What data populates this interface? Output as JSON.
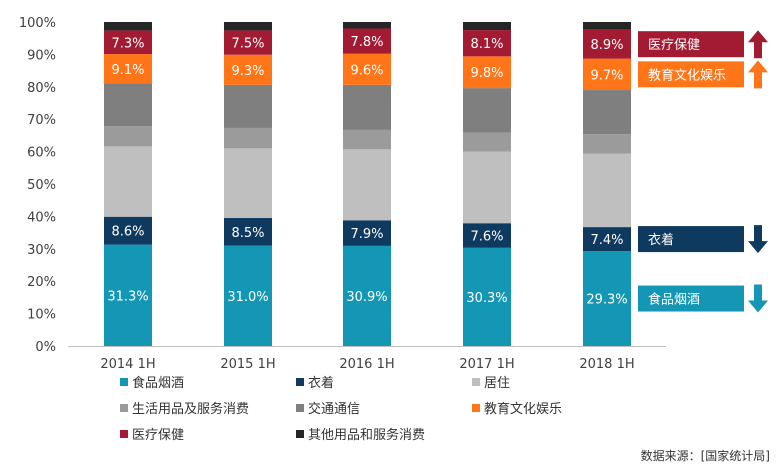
{
  "chart_data": {
    "type": "bar",
    "stacked": true,
    "categories": [
      "2014 1H",
      "2015 1H",
      "2016 1H",
      "2017 1H",
      "2018 1H"
    ],
    "ylim": [
      0,
      100
    ],
    "y_ticks": [
      "0%",
      "10%",
      "20%",
      "30%",
      "40%",
      "50%",
      "60%",
      "70%",
      "80%",
      "90%",
      "100%"
    ],
    "series": [
      {
        "name": "食品烟酒",
        "color": "#1497B5",
        "values": [
          31.3,
          31.0,
          30.9,
          30.3,
          29.3
        ],
        "labels": [
          "31.3%",
          "31.0%",
          "30.9%",
          "30.3%",
          "29.3%"
        ],
        "label_color": "#ffffff"
      },
      {
        "name": "衣着",
        "color": "#0F3A5F",
        "values": [
          8.6,
          8.5,
          7.9,
          7.6,
          7.4
        ],
        "labels": [
          "8.6%",
          "8.5%",
          "7.9%",
          "7.6%",
          "7.4%"
        ],
        "label_color": "#ffffff"
      },
      {
        "name": "居住",
        "color": "#BFBFBF",
        "values": [
          21.7,
          21.5,
          21.9,
          22.1,
          22.7
        ],
        "labels": [],
        "label_color": ""
      },
      {
        "name": "生活用品及服务消费",
        "color": "#9B9B9B",
        "values": [
          6.2,
          6.3,
          6.0,
          5.8,
          6.0
        ],
        "labels": [],
        "label_color": ""
      },
      {
        "name": "交通通信",
        "color": "#7F7F7F",
        "values": [
          13.2,
          13.3,
          13.9,
          13.8,
          13.6
        ],
        "labels": [],
        "label_color": ""
      },
      {
        "name": "教育文化娱乐",
        "color": "#FF7518",
        "values": [
          9.1,
          9.3,
          9.6,
          9.8,
          9.7
        ],
        "labels": [
          "9.1%",
          "9.3%",
          "9.6%",
          "9.8%",
          "9.7%"
        ],
        "label_color": "#ffffff"
      },
      {
        "name": "医疗保健",
        "color": "#A31A33",
        "values": [
          7.3,
          7.5,
          7.8,
          8.1,
          8.9
        ],
        "labels": [
          "7.3%",
          "7.5%",
          "7.8%",
          "8.1%",
          "8.9%"
        ],
        "label_color": "#ffffff"
      },
      {
        "name": "其他用品和服务消费",
        "color": "#262626",
        "values": [
          2.6,
          2.6,
          2.0,
          2.5,
          2.4
        ],
        "labels": [],
        "label_color": ""
      }
    ],
    "legend_placement": "bottom",
    "grid": false,
    "annotations": [
      {
        "text": "医疗保健",
        "color": "#A31A33",
        "trend": "up"
      },
      {
        "text": "教育文化娱乐",
        "color": "#FF7518",
        "trend": "up"
      },
      {
        "text": "衣着",
        "color": "#0F3A5F",
        "trend": "down"
      },
      {
        "text": "食品烟酒",
        "color": "#1497B5",
        "trend": "down"
      }
    ],
    "source_note": "数据来源：[国家统计局]"
  }
}
